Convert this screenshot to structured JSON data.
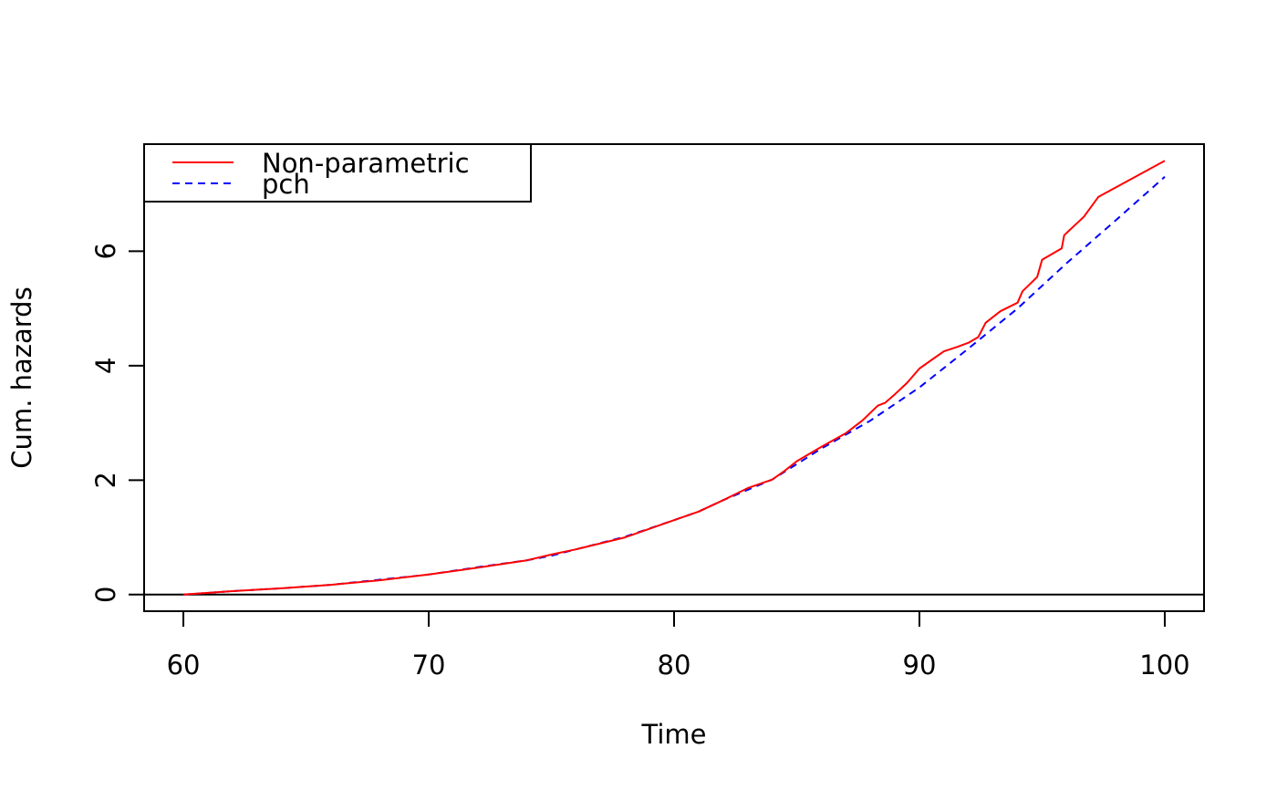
{
  "chart_data": {
    "type": "line",
    "title": "",
    "xlabel": "Time",
    "ylabel": "Cum. hazards",
    "xlim": [
      58.4,
      101.6
    ],
    "ylim": [
      -0.29,
      7.87
    ],
    "x_ticks": [
      60,
      70,
      80,
      90,
      100
    ],
    "y_ticks": [
      0,
      2,
      4,
      6
    ],
    "grid": false,
    "reference_line_y": 0,
    "legend": {
      "placement": "top-left",
      "entries": [
        {
          "label": "Non-parametric",
          "color": "#ff0000",
          "dash": "solid"
        },
        {
          "label": "pch",
          "color": "#0000ff",
          "dash": "dashed"
        }
      ]
    },
    "series": [
      {
        "name": "Non-parametric",
        "color": "#ff0000",
        "dash": "solid",
        "x": [
          60,
          62,
          64,
          66,
          68,
          70,
          72,
          74,
          75,
          76,
          78,
          80,
          81,
          82,
          83,
          84,
          84.5,
          85,
          86,
          87,
          87.7,
          88.3,
          88.6,
          89,
          89.5,
          90,
          90.5,
          91,
          91.5,
          92,
          92.4,
          92.7,
          93.3,
          94,
          94.2,
          94.8,
          95,
          95.8,
          95.9,
          96.7,
          97.3,
          100
        ],
        "y": [
          0,
          0.06,
          0.11,
          0.17,
          0.25,
          0.35,
          0.47,
          0.6,
          0.7,
          0.79,
          1.0,
          1.3,
          1.45,
          1.65,
          1.86,
          2.01,
          2.16,
          2.33,
          2.58,
          2.82,
          3.05,
          3.3,
          3.35,
          3.5,
          3.7,
          3.95,
          4.1,
          4.25,
          4.32,
          4.4,
          4.5,
          4.75,
          4.95,
          5.1,
          5.3,
          5.55,
          5.85,
          6.05,
          6.28,
          6.6,
          6.95,
          7.58
        ]
      },
      {
        "name": "pch",
        "color": "#0000ff",
        "dash": "dashed",
        "x": [
          60,
          62,
          64,
          66,
          68,
          70,
          72,
          74,
          75,
          76,
          78,
          80,
          81,
          82,
          84,
          86,
          88,
          90,
          92,
          94,
          96,
          98,
          100
        ],
        "y": [
          0,
          0.06,
          0.11,
          0.17,
          0.26,
          0.35,
          0.48,
          0.6,
          0.68,
          0.79,
          1.01,
          1.3,
          1.45,
          1.65,
          2.01,
          2.55,
          3.04,
          3.62,
          4.3,
          5.0,
          5.79,
          6.54,
          7.3
        ]
      }
    ]
  }
}
